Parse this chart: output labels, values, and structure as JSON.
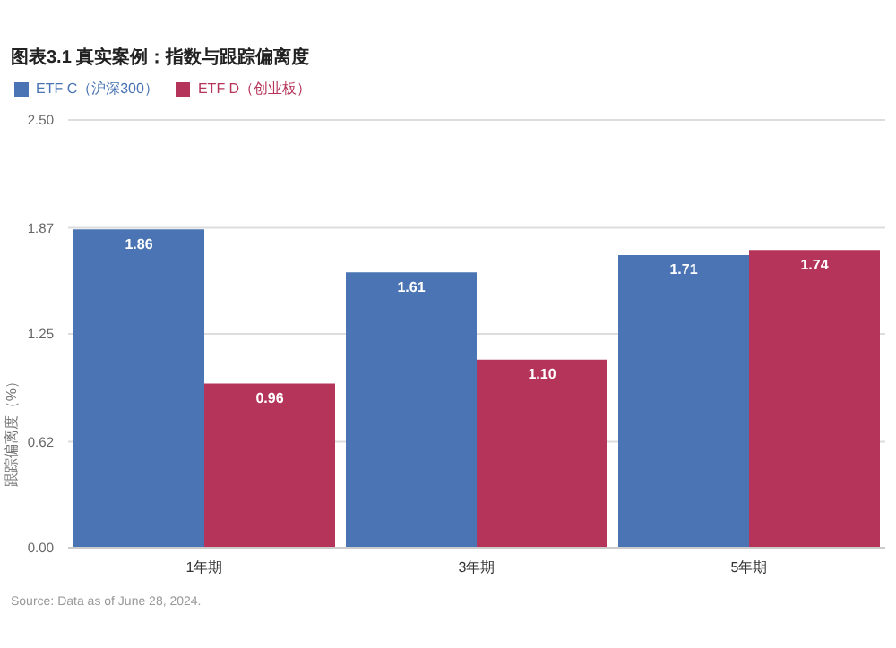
{
  "chart_data": {
    "type": "bar",
    "title": "图表3.1 真实案例：指数与跟踪偏离度",
    "ylabel": "跟踪偏离度（%）",
    "categories": [
      "1年期",
      "3年期",
      "5年期"
    ],
    "series": [
      {
        "name": "ETF C（沪深300）",
        "color": "#4a74b4",
        "values": [
          1.86,
          1.61,
          1.71
        ],
        "value_labels": [
          "1.86",
          "1.61",
          "1.71"
        ]
      },
      {
        "name": "ETF D（创业板）",
        "color": "#b5345a",
        "values": [
          0.96,
          1.1,
          1.74
        ],
        "value_labels": [
          "0.96",
          "1.10",
          "1.74"
        ]
      }
    ],
    "ylim": [
      0,
      2.5
    ],
    "yticks": [
      {
        "value": 0,
        "label": "0.00"
      },
      0.62,
      1.25,
      1.87,
      {
        "value": 2.5,
        "label": "2.50"
      }
    ],
    "grid": "y",
    "legend": "top left",
    "annotations": [
      "Source: Data as of June 28, 2024."
    ]
  }
}
